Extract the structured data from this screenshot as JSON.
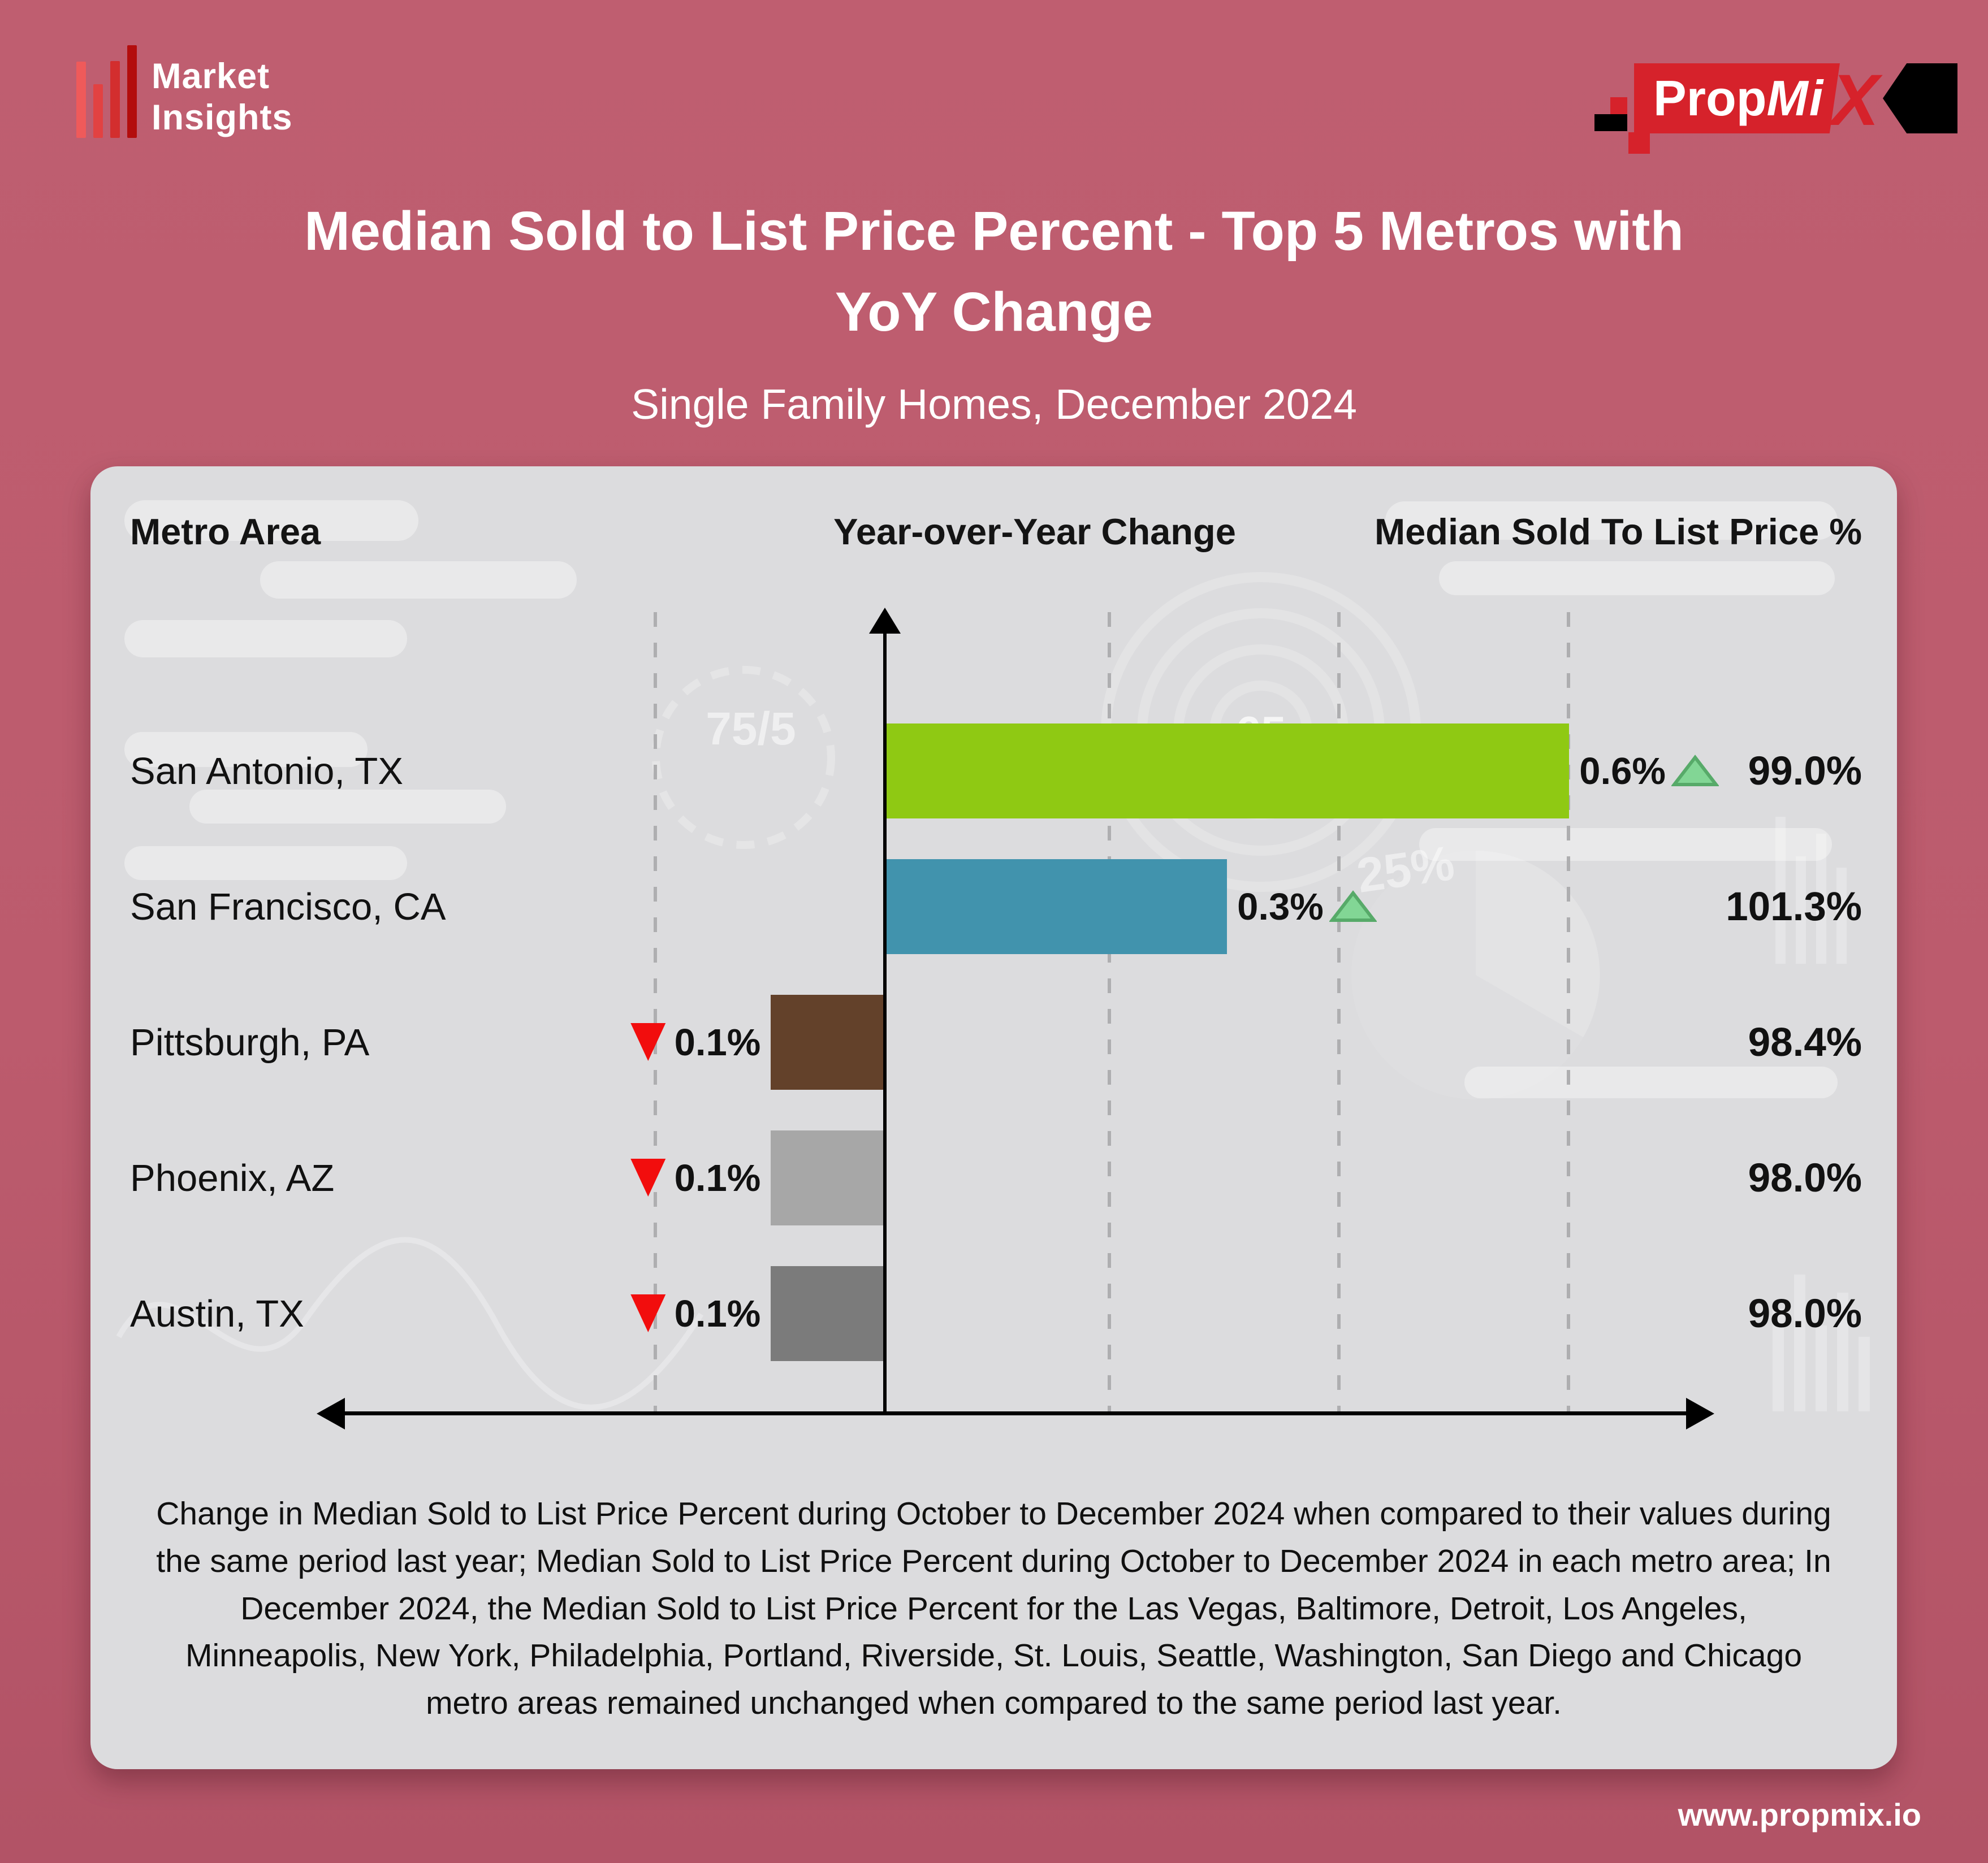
{
  "brand": {
    "line1": "Market",
    "line2": "Insights"
  },
  "propmix": {
    "prop": "Prop",
    "mi": "Mi",
    "x": "X"
  },
  "title": {
    "line1": "Median Sold to List Price Percent - Top 5 Metros with",
    "line2": "YoY Change"
  },
  "subtitle": "Single Family Homes, December 2024",
  "columns": {
    "metro": "Metro Area",
    "yoy": "Year-over-Year Change",
    "price": "Median Sold To List Price %"
  },
  "watermarks": {
    "gauge_left": "75/5",
    "circle_value": "65",
    "pct": "25%"
  },
  "footnote": "Change in Median Sold to List Price Percent during October to December 2024 when compared to their values during the same period last year; Median Sold to List Price Percent during October to December 2024 in each metro area; In December 2024, the Median Sold to List Price Percent for the Las Vegas, Baltimore, Detroit, Los Angeles, Minneapolis, New York, Philadelphia, Portland, Riverside, St. Louis, Seattle, Washington, San Diego and Chicago metro areas remained unchanged when compared to the same period last year.",
  "website": "www.propmix.io",
  "chart_data": {
    "type": "bar",
    "orientation": "horizontal",
    "title": "Median Sold to List Price Percent - Top 5 Metros with YoY Change",
    "subtitle": "Single Family Homes, December 2024",
    "categories": [
      "San Antonio, TX",
      "San Francisco, CA",
      "Pittsburgh, PA",
      "Phoenix, AZ",
      "Austin, TX"
    ],
    "series": [
      {
        "name": "Year-over-Year Change (%)",
        "values": [
          0.6,
          0.3,
          -0.1,
          -0.1,
          -0.1
        ]
      },
      {
        "name": "Median Sold To List Price %",
        "values": [
          99.0,
          101.3,
          98.4,
          98.0,
          98.0
        ]
      }
    ],
    "x_axis": {
      "label": "Year-over-Year Change",
      "axis_at": 0,
      "gridlines_pct": [
        -0.2,
        0.2,
        0.4,
        0.6
      ],
      "xlim": [
        -0.25,
        0.65
      ],
      "grid": "dashed"
    },
    "legend": "none",
    "rows": [
      {
        "metro": "San Antonio, TX",
        "yoy_pct": 0.6,
        "yoy_label": "0.6%",
        "direction": "up",
        "price_label": "99.0%",
        "price_pct": 99.0,
        "bar_color": "#8fc913"
      },
      {
        "metro": "San Francisco, CA",
        "yoy_pct": 0.3,
        "yoy_label": "0.3%",
        "direction": "up",
        "price_label": "101.3%",
        "price_pct": 101.3,
        "bar_color": "#4193ad"
      },
      {
        "metro": "Pittsburgh, PA",
        "yoy_pct": -0.1,
        "yoy_label": "0.1%",
        "direction": "down",
        "price_label": "98.4%",
        "price_pct": 98.4,
        "bar_color": "#63412a"
      },
      {
        "metro": "Phoenix, AZ",
        "yoy_pct": -0.1,
        "yoy_label": "0.1%",
        "direction": "down",
        "price_label": "98.0%",
        "price_pct": 98.0,
        "bar_color": "#a7a7a7"
      },
      {
        "metro": "Austin, TX",
        "yoy_pct": -0.1,
        "yoy_label": "0.1%",
        "direction": "down",
        "price_label": "98.0%",
        "price_pct": 98.0,
        "bar_color": "#7b7b7b"
      }
    ],
    "indicator_colors": {
      "up_fill": "#82d695",
      "up_stroke": "#57aa69",
      "down_fill": "#f20d0d"
    }
  }
}
